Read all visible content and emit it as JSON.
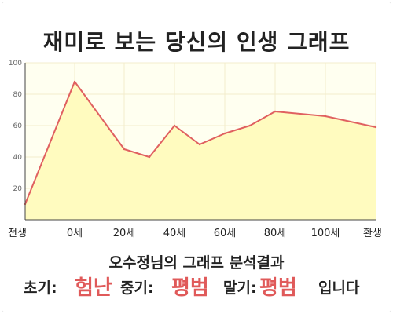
{
  "title": "재미로 보는 당신의 인생 그래프",
  "result": {
    "heading": "오수정님의 그래프 분석결과",
    "early_label": "초기:",
    "early_value": "험난",
    "mid_label": "중기:",
    "mid_value": "평범",
    "late_label": "말기:",
    "late_value": "평범",
    "ending": "입니다"
  },
  "colors": {
    "line": "#e06060",
    "fill": "#fffbbf",
    "plot_bg": "#fffff0",
    "grid": "#f3eccc",
    "highlight": "#e05a5a"
  },
  "chart_data": {
    "type": "area",
    "title": "재미로 보는 당신의 인생 그래프",
    "xlabel": "",
    "ylabel": "",
    "ylim": [
      0,
      100
    ],
    "y_ticks": [
      20,
      40,
      60,
      80,
      100
    ],
    "x_tick_labels": [
      "전생",
      "0세",
      "20세",
      "40세",
      "60세",
      "80세",
      "100세",
      "환생"
    ],
    "grid": true,
    "series": [
      {
        "points": [
          {
            "x": "전생",
            "y": 10
          },
          {
            "x": "0세",
            "y": 88
          },
          {
            "x": "20세",
            "y": 45
          },
          {
            "x": "30세",
            "y": 40
          },
          {
            "x": "40세",
            "y": 60
          },
          {
            "x": "50세",
            "y": 48
          },
          {
            "x": "60세",
            "y": 55
          },
          {
            "x": "70세",
            "y": 60
          },
          {
            "x": "80세",
            "y": 69
          },
          {
            "x": "100세",
            "y": 66
          },
          {
            "x": "환생",
            "y": 59
          }
        ]
      }
    ]
  }
}
